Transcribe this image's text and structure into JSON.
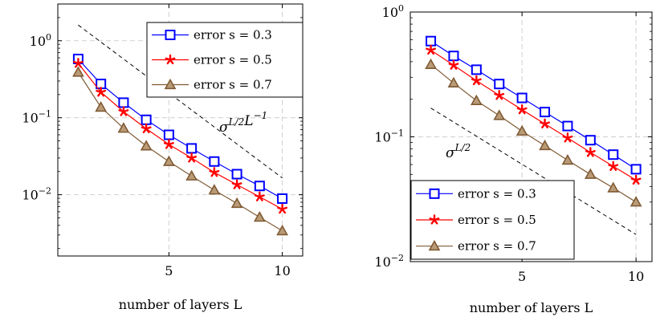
{
  "chart_data": [
    {
      "type": "line",
      "x": [
        1,
        2,
        3,
        4,
        5,
        6,
        7,
        8,
        9,
        10
      ],
      "xlabel": "number of layers L",
      "xticks": [
        "5",
        "10"
      ],
      "xtick_values": [
        5,
        10
      ],
      "xlim": [
        0.1,
        10.9
      ],
      "yscale": "log",
      "ylim": [
        0.0016,
        3.0
      ],
      "yticks": [
        "10^0",
        "10^-1",
        "10^-2"
      ],
      "ytick_values": [
        1,
        0.1,
        0.01
      ],
      "grid": true,
      "legend_position": "top-right",
      "series": [
        {
          "name": "error s = 0.3",
          "color": "#0000ff",
          "marker": "square",
          "values": [
            0.58,
            0.275,
            0.157,
            0.094,
            0.06,
            0.04,
            0.027,
            0.0185,
            0.013,
            0.0089
          ]
        },
        {
          "name": "error s = 0.5",
          "color": "#ff0000",
          "marker": "star",
          "values": [
            0.51,
            0.215,
            0.12,
            0.072,
            0.045,
            0.03,
            0.0195,
            0.0135,
            0.0094,
            0.0065
          ]
        },
        {
          "name": "error s = 0.7",
          "color": "#7f5a34",
          "marker": "triangle",
          "values": [
            0.39,
            0.137,
            0.073,
            0.043,
            0.027,
            0.0175,
            0.0115,
            0.0077,
            0.0051,
            0.0034
          ]
        }
      ],
      "reference_line": {
        "label": "σ^{L/2} L^{-1}",
        "x": [
          1,
          10
        ],
        "y": [
          1.6,
          0.0165
        ]
      }
    },
    {
      "type": "line",
      "x": [
        1,
        2,
        3,
        4,
        5,
        6,
        7,
        8,
        9,
        10
      ],
      "xlabel": "number of layers L",
      "xticks": [
        "5",
        "10"
      ],
      "xtick_values": [
        5,
        10
      ],
      "xlim": [
        0.1,
        10.7
      ],
      "yscale": "log",
      "ylim": [
        0.01,
        1.0
      ],
      "yticks": [
        "10^0",
        "10^-1",
        "10^-2"
      ],
      "ytick_values": [
        1,
        0.1,
        0.01
      ],
      "grid": true,
      "legend_position": "bottom-left",
      "series": [
        {
          "name": "error s = 0.3",
          "color": "#0000ff",
          "marker": "square",
          "values": [
            0.585,
            0.445,
            0.345,
            0.265,
            0.205,
            0.158,
            0.122,
            0.094,
            0.072,
            0.055
          ]
        },
        {
          "name": "error s = 0.5",
          "color": "#ff0000",
          "marker": "star",
          "values": [
            0.495,
            0.375,
            0.282,
            0.215,
            0.165,
            0.127,
            0.098,
            0.075,
            0.058,
            0.045
          ]
        },
        {
          "name": "error s = 0.7",
          "color": "#7f5a34",
          "marker": "triangle",
          "values": [
            0.38,
            0.27,
            0.195,
            0.148,
            0.111,
            0.085,
            0.065,
            0.05,
            0.039,
            0.03
          ]
        }
      ],
      "reference_line": {
        "label": "σ^{L/2}",
        "x": [
          1,
          10
        ],
        "y": [
          0.17,
          0.0165
        ]
      }
    }
  ]
}
